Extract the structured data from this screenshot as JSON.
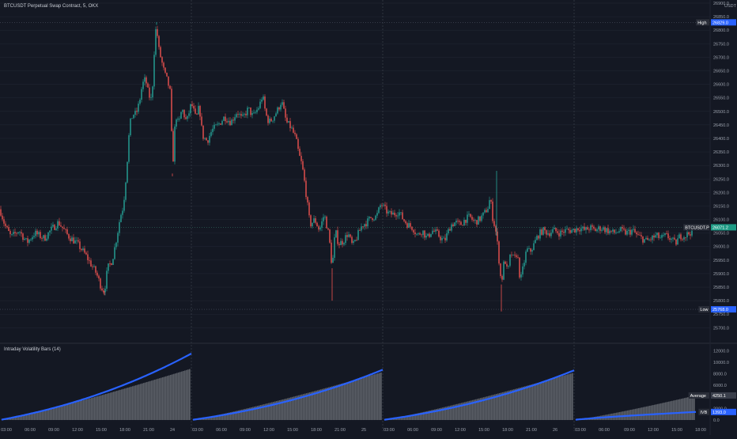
{
  "header": {
    "title": "BTCUSDT Perpetual Swap Contract, 5, OKX",
    "currency": "USDT"
  },
  "indicator": {
    "title": "Intraday Volatility Bars (14)"
  },
  "colors": {
    "background": "#141823",
    "up": "#26a69a",
    "down": "#ef5350",
    "line": "#2962ff",
    "hist": "#8c8f96",
    "grid": "#232835",
    "separator": "#3a3f4b",
    "price_badge": "#1e9b85",
    "high_low_badge": "#2962ff"
  },
  "chart_data": [
    {
      "type": "candlestick",
      "series_name": "BTCUSDT",
      "ylim": [
        25660,
        26900
      ],
      "y_ticks": [
        "26900.0",
        "26850.0",
        "26800.0",
        "26750.0",
        "26700.0",
        "26650.0",
        "26600.0",
        "26550.0",
        "26500.0",
        "26450.0",
        "26400.0",
        "26350.0",
        "26300.0",
        "26250.0",
        "26200.0",
        "26150.0",
        "26100.0",
        "26050.0",
        "26000.0",
        "25950.0",
        "25900.0",
        "25850.0",
        "25800.0",
        "25750.0",
        "25700.0"
      ],
      "anchors": [
        [
          0,
          26138
        ],
        [
          6,
          26080
        ],
        [
          14,
          26035
        ],
        [
          24,
          26060
        ],
        [
          34,
          26015
        ],
        [
          44,
          26050
        ],
        [
          56,
          26030
        ],
        [
          64,
          26060
        ],
        [
          74,
          26090
        ],
        [
          86,
          26040
        ],
        [
          98,
          26010
        ],
        [
          108,
          25970
        ],
        [
          116,
          25930
        ],
        [
          122,
          25900
        ],
        [
          128,
          25850
        ],
        [
          132,
          25835
        ],
        [
          136,
          25920
        ],
        [
          142,
          25950
        ],
        [
          148,
          26040
        ],
        [
          152,
          26110
        ],
        [
          156,
          26150
        ],
        [
          160,
          26280
        ],
        [
          164,
          26450
        ],
        [
          168,
          26490
        ],
        [
          172,
          26490
        ],
        [
          176,
          26530
        ],
        [
          180,
          26600
        ],
        [
          184,
          26620
        ],
        [
          188,
          26560
        ],
        [
          192,
          26540
        ],
        [
          196,
          26780
        ],
        [
          198,
          26820
        ],
        [
          200,
          26740
        ],
        [
          204,
          26690
        ],
        [
          208,
          26640
        ],
        [
          212,
          26610
        ],
        [
          216,
          26560
        ],
        [
          218,
          26270
        ],
        [
          222,
          26490
        ],
        [
          226,
          26450
        ],
        [
          230,
          26510
        ],
        [
          236,
          26460
        ],
        [
          242,
          26530
        ],
        [
          248,
          26470
        ],
        [
          252,
          26520
        ],
        [
          256,
          26410
        ],
        [
          262,
          26390
        ],
        [
          268,
          26430
        ],
        [
          276,
          26450
        ],
        [
          284,
          26480
        ],
        [
          292,
          26460
        ],
        [
          300,
          26500
        ],
        [
          306,
          26470
        ],
        [
          314,
          26510
        ],
        [
          320,
          26480
        ],
        [
          328,
          26520
        ],
        [
          332,
          26560
        ],
        [
          336,
          26490
        ],
        [
          340,
          26460
        ],
        [
          344,
          26470
        ],
        [
          352,
          26510
        ],
        [
          356,
          26540
        ],
        [
          362,
          26460
        ],
        [
          368,
          26440
        ],
        [
          374,
          26400
        ],
        [
          378,
          26340
        ],
        [
          382,
          26300
        ],
        [
          386,
          26220
        ],
        [
          392,
          26080
        ],
        [
          398,
          26100
        ],
        [
          404,
          26060
        ],
        [
          410,
          26120
        ],
        [
          416,
          26040
        ],
        [
          420,
          25920
        ],
        [
          424,
          26060
        ],
        [
          428,
          26010
        ],
        [
          434,
          26020
        ],
        [
          440,
          26050
        ],
        [
          446,
          26000
        ],
        [
          452,
          26040
        ],
        [
          458,
          26080
        ],
        [
          464,
          26090
        ],
        [
          470,
          26110
        ],
        [
          476,
          26110
        ],
        [
          482,
          26160
        ],
        [
          486,
          26140
        ],
        [
          492,
          26120
        ],
        [
          498,
          26120
        ],
        [
          504,
          26130
        ],
        [
          510,
          26100
        ],
        [
          516,
          26080
        ],
        [
          522,
          26070
        ],
        [
          528,
          26040
        ],
        [
          534,
          26060
        ],
        [
          540,
          26030
        ],
        [
          546,
          26060
        ],
        [
          552,
          26050
        ],
        [
          558,
          26030
        ],
        [
          562,
          26020
        ],
        [
          566,
          26050
        ],
        [
          570,
          26080
        ],
        [
          576,
          26090
        ],
        [
          582,
          26080
        ],
        [
          588,
          26100
        ],
        [
          594,
          26110
        ],
        [
          600,
          26090
        ],
        [
          606,
          26100
        ],
        [
          612,
          26120
        ],
        [
          618,
          26150
        ],
        [
          620,
          26190
        ],
        [
          622,
          26120
        ],
        [
          626,
          26070
        ],
        [
          628,
          26040
        ],
        [
          632,
          25920
        ],
        [
          634,
          25860
        ],
        [
          638,
          25960
        ],
        [
          642,
          25900
        ],
        [
          646,
          25980
        ],
        [
          650,
          25950
        ],
        [
          654,
          25980
        ],
        [
          658,
          25870
        ],
        [
          662,
          25930
        ],
        [
          666,
          25990
        ],
        [
          670,
          25980
        ],
        [
          674,
          26000
        ],
        [
          680,
          26040
        ],
        [
          686,
          26060
        ],
        [
          694,
          26050
        ],
        [
          700,
          26060
        ],
        [
          708,
          26050
        ],
        [
          716,
          26060
        ],
        [
          724,
          26060
        ],
        [
          732,
          26070
        ],
        [
          740,
          26060
        ],
        [
          746,
          26070
        ],
        [
          752,
          26060
        ],
        [
          760,
          26070
        ],
        [
          768,
          26060
        ],
        [
          776,
          26050
        ],
        [
          784,
          26060
        ],
        [
          792,
          26050
        ],
        [
          800,
          26060
        ],
        [
          806,
          26040
        ],
        [
          812,
          26030
        ],
        [
          818,
          26020
        ],
        [
          824,
          26030
        ],
        [
          830,
          26040
        ],
        [
          836,
          26030
        ],
        [
          842,
          26040
        ],
        [
          848,
          26030
        ],
        [
          854,
          26010
        ],
        [
          860,
          26040
        ],
        [
          866,
          26040
        ],
        [
          872,
          26050
        ],
        [
          878,
          26071
        ]
      ],
      "spikes": [
        {
          "x": 198,
          "value": 26830,
          "dir": "up"
        },
        {
          "x": 218,
          "value": 26260,
          "dir": "down"
        },
        {
          "x": 420,
          "value": 25800,
          "dir": "down"
        },
        {
          "x": 628,
          "value": 26280,
          "dir": "up"
        },
        {
          "x": 634,
          "value": 25760,
          "dir": "down"
        },
        {
          "x": 132,
          "value": 25820,
          "dir": "down"
        }
      ],
      "last_price_label": "BTCUSDT.P",
      "last_price": "26071.2",
      "high_label": "High",
      "high": "26829.0",
      "low_label": "Low",
      "low": "25768.0"
    },
    {
      "type": "line+bar",
      "title": "Intraday Volatility Bars (14)",
      "ylim": [
        0,
        13000
      ],
      "y_ticks": [
        "12000.0",
        "10000.0",
        "8000.0",
        "6000.0",
        "4000.0",
        "2000.0",
        "0.0"
      ],
      "sessions": [
        {
          "start": 0,
          "end": 242,
          "line_end": 11500,
          "hist_end": 8900
        },
        {
          "start": 242,
          "end": 484,
          "line_end": 8700,
          "hist_end": 8300
        },
        {
          "start": 484,
          "end": 726,
          "line_end": 8600,
          "hist_end": 8200
        },
        {
          "start": 726,
          "end": 880,
          "line_end": 1400,
          "hist_end": 4250
        }
      ],
      "average_label": "Average",
      "average_value": "4250.1",
      "iv_label": "IVB",
      "iv_value": "1393.0"
    }
  ],
  "x_axis": {
    "labels": [
      {
        "x": 8,
        "text": "03:00"
      },
      {
        "x": 38,
        "text": "06:00"
      },
      {
        "x": 68,
        "text": "09:00"
      },
      {
        "x": 98,
        "text": "12:00"
      },
      {
        "x": 128,
        "text": "15:00"
      },
      {
        "x": 158,
        "text": "18:00"
      },
      {
        "x": 188,
        "text": "21:00"
      },
      {
        "x": 218,
        "text": "24"
      },
      {
        "x": 250,
        "text": "03:00"
      },
      {
        "x": 280,
        "text": "06:00"
      },
      {
        "x": 310,
        "text": "09:00"
      },
      {
        "x": 340,
        "text": "12:00"
      },
      {
        "x": 370,
        "text": "15:00"
      },
      {
        "x": 400,
        "text": "18:00"
      },
      {
        "x": 430,
        "text": "21:00"
      },
      {
        "x": 460,
        "text": "25"
      },
      {
        "x": 492,
        "text": "03:00"
      },
      {
        "x": 522,
        "text": "06:00"
      },
      {
        "x": 552,
        "text": "09:00"
      },
      {
        "x": 582,
        "text": "12:00"
      },
      {
        "x": 612,
        "text": "15:00"
      },
      {
        "x": 642,
        "text": "18:00"
      },
      {
        "x": 672,
        "text": "21:00"
      },
      {
        "x": 702,
        "text": "26"
      },
      {
        "x": 734,
        "text": "03:00"
      },
      {
        "x": 764,
        "text": "06:00"
      },
      {
        "x": 796,
        "text": "09:00"
      },
      {
        "x": 826,
        "text": "12:00"
      },
      {
        "x": 856,
        "text": "15:00"
      },
      {
        "x": 886,
        "text": "18:00"
      }
    ]
  }
}
